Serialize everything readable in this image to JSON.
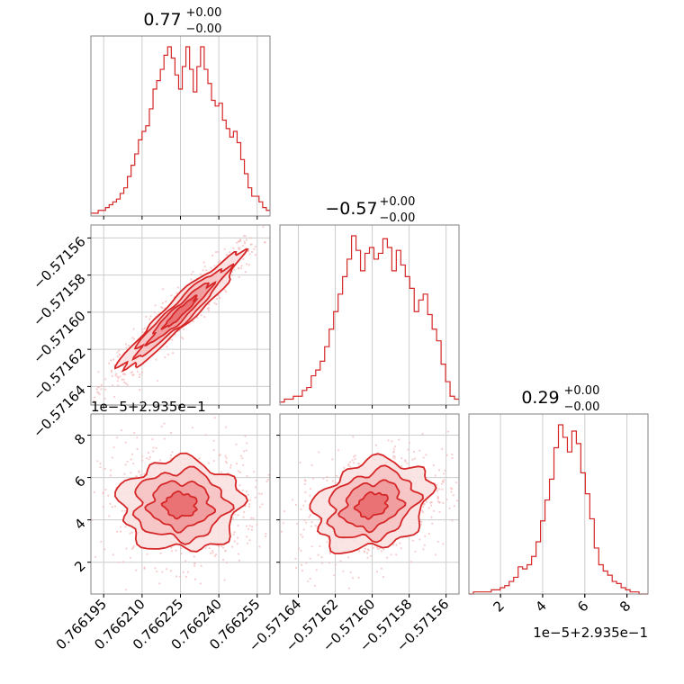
{
  "chart_data": {
    "type": "corner",
    "color": "#d62728",
    "fill_color": "#f2a0a1",
    "grid": true,
    "parameters": [
      {
        "title_value": "0.77",
        "title_plus": "+0.00",
        "title_minus": "−0.00",
        "range": [
          0.76619,
          0.76626
        ],
        "ticks": [
          0.766195,
          0.76621,
          0.766225,
          0.76624,
          0.766255
        ],
        "tick_labels": [
          "0.766195",
          "0.766210",
          "0.766225",
          "0.766240",
          "0.766255"
        ],
        "offset_label": ""
      },
      {
        "title_value": "−0.57",
        "title_plus": "+0.00",
        "title_minus": "−0.00",
        "range": [
          -0.57165,
          -0.571553
        ],
        "ticks": [
          -0.57164,
          -0.57162,
          -0.5716,
          -0.57158,
          -0.57156
        ],
        "tick_labels": [
          "−0.57164",
          "−0.57162",
          "−0.57160",
          "−0.57158",
          "−0.57156"
        ],
        "offset_label": ""
      },
      {
        "title_value": "0.29",
        "title_plus": "+0.00",
        "title_minus": "−0.00",
        "range": [
          0.5,
          9.0
        ],
        "ticks": [
          2,
          4,
          6,
          8
        ],
        "tick_labels": [
          "2",
          "4",
          "6",
          "8"
        ],
        "offset_label": "1e−5+2.935e−1"
      }
    ],
    "histograms": [
      {
        "param": 0,
        "counts": [
          1,
          1,
          2,
          2,
          3,
          4,
          5,
          6,
          8,
          10,
          14,
          18,
          22,
          27,
          30,
          32,
          38,
          45,
          48,
          52,
          57,
          60,
          56,
          50,
          45,
          53,
          60,
          52,
          44,
          53,
          60,
          52,
          47,
          41,
          39,
          40,
          34,
          31,
          28,
          30,
          26,
          20,
          15,
          10,
          7,
          7,
          5,
          3,
          2
        ]
      },
      {
        "param": 1,
        "counts": [
          1,
          2,
          2,
          3,
          3,
          5,
          6,
          10,
          12,
          15,
          20,
          26,
          32,
          38,
          44,
          50,
          58,
          53,
          46,
          52,
          54,
          50,
          52,
          57,
          54,
          46,
          53,
          48,
          44,
          40,
          32,
          36,
          38,
          31,
          26,
          22,
          14,
          8,
          3,
          2
        ]
      },
      {
        "param": 2,
        "counts": [
          0,
          1,
          1,
          1,
          1,
          2,
          2,
          3,
          4,
          6,
          8,
          13,
          12,
          14,
          18,
          25,
          35,
          45,
          55,
          70,
          81,
          75,
          68,
          78,
          72,
          58,
          48,
          36,
          22,
          14,
          11,
          9,
          6,
          5,
          3,
          2,
          1,
          1,
          0,
          0
        ]
      }
    ],
    "joint_plots": [
      {
        "x_param": 0,
        "y_param": 1,
        "center": [
          0.766225,
          -0.5716
        ],
        "sd": [
          1.15e-05,
          1.52e-05
        ],
        "corr": 0.95
      },
      {
        "x_param": 0,
        "y_param": 2,
        "center": [
          0.766225,
          4.7
        ],
        "sd": [
          1.15e-05,
          1.05
        ],
        "corr": 0.0
      },
      {
        "x_param": 1,
        "y_param": 2,
        "center": [
          -0.5716,
          4.7
        ],
        "sd": [
          1.52e-05,
          1.05
        ],
        "corr": 0.25
      }
    ]
  }
}
